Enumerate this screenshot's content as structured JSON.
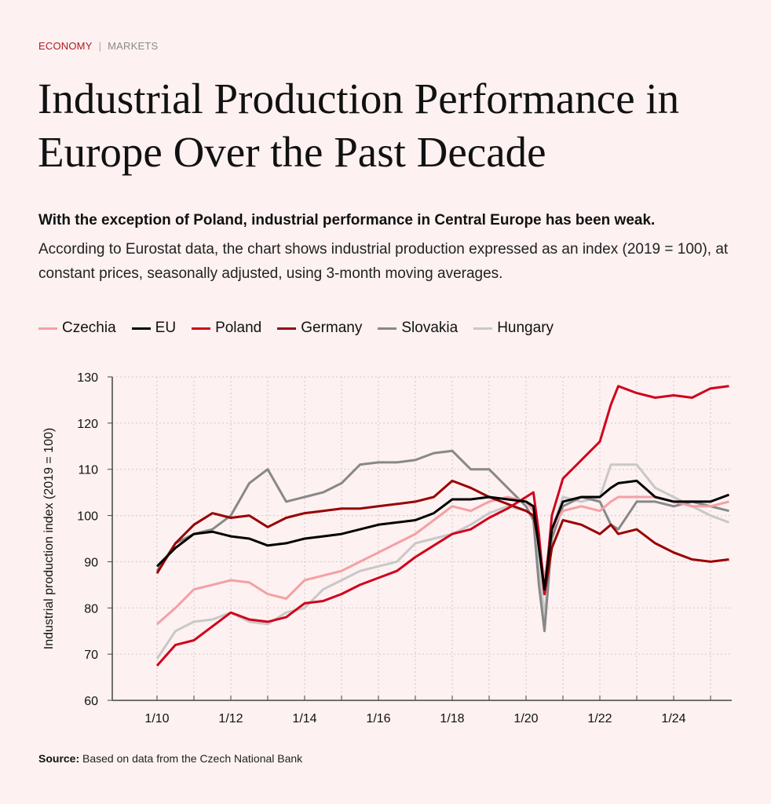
{
  "kicker": {
    "section": "ECONOMY",
    "separator": "|",
    "subsection": "MARKETS"
  },
  "title": "Industrial Production Performance in Europe Over the Past Decade",
  "lead": "With the exception of Poland, industrial performance in Central Europe has been weak.",
  "description": "According to Eurostat data, the chart shows industrial production expressed as an index (2019 = 100), at constant prices, seasonally adjusted, using 3-month moving averages.",
  "source": {
    "label": "Source:",
    "text": "Based on data from the Czech National Bank"
  },
  "chart_data": {
    "type": "line",
    "title": "",
    "xlabel": "",
    "ylabel": "Industrial production index (2019 = 100)",
    "ylim": [
      60,
      130
    ],
    "yticks": [
      60,
      70,
      80,
      90,
      100,
      110,
      120,
      130
    ],
    "xlim": [
      2008.1,
      2025.6
    ],
    "xticks": [
      2010,
      2011,
      2012,
      2013,
      2014,
      2015,
      2016,
      2017,
      2018,
      2019,
      2020,
      2021,
      2022,
      2023,
      2024,
      2025
    ],
    "xtick_labels": [
      {
        "x": 2010,
        "label": "1/10"
      },
      {
        "x": 2012,
        "label": "1/12"
      },
      {
        "x": 2014,
        "label": "1/14"
      },
      {
        "x": 2016,
        "label": "1/16"
      },
      {
        "x": 2018,
        "label": "1/18"
      },
      {
        "x": 2020,
        "label": "1/20"
      },
      {
        "x": 2022,
        "label": "1/22"
      },
      {
        "x": 2024,
        "label": "1/24"
      }
    ],
    "grid": true,
    "legend_position": "top-left",
    "x": [
      2010.0,
      2010.5,
      2011.0,
      2011.5,
      2012.0,
      2012.5,
      2013.0,
      2013.5,
      2014.0,
      2014.5,
      2015.0,
      2015.5,
      2016.0,
      2016.5,
      2017.0,
      2017.5,
      2018.0,
      2018.5,
      2019.0,
      2019.5,
      2020.0,
      2020.2,
      2020.35,
      2020.5,
      2020.7,
      2021.0,
      2021.5,
      2022.0,
      2022.3,
      2022.5,
      2023.0,
      2023.5,
      2024.0,
      2024.5,
      2025.0,
      2025.5
    ],
    "series": [
      {
        "name": "Czechia",
        "color": "#f4a0a5",
        "values": [
          76.5,
          80,
          84,
          85,
          86,
          85.5,
          83,
          82,
          86,
          87,
          88,
          90,
          92,
          94,
          96,
          99,
          102,
          101,
          103,
          104,
          103,
          101,
          94,
          86,
          97,
          101,
          102,
          101,
          103,
          104,
          104,
          104,
          103,
          102,
          102,
          103
        ]
      },
      {
        "name": "EU",
        "color": "#000000",
        "values": [
          89,
          93,
          96,
          96.5,
          95.5,
          95,
          93.5,
          94,
          95,
          95.5,
          96,
          97,
          98,
          98.5,
          99,
          100.5,
          103.5,
          103.5,
          104,
          103.5,
          103,
          102,
          93,
          84,
          97,
          103,
          104,
          104,
          106,
          107,
          107.5,
          104,
          103,
          103,
          103,
          104.5
        ]
      },
      {
        "name": "Poland",
        "color": "#d0021b",
        "values": [
          67.5,
          72,
          73,
          76,
          79,
          77.5,
          77,
          78,
          81,
          81.5,
          83,
          85,
          86.5,
          88,
          91,
          93.5,
          96,
          97,
          99.5,
          101.5,
          104,
          105,
          96,
          83,
          100,
          108,
          112,
          116,
          124,
          128,
          126.5,
          125.5,
          126,
          125.5,
          127.5,
          128
        ]
      },
      {
        "name": "Germany",
        "color": "#990000",
        "values": [
          87.5,
          94,
          98,
          100.5,
          99.5,
          100,
          97.5,
          99.5,
          100.5,
          101,
          101.5,
          101.5,
          102,
          102.5,
          103,
          104,
          107.5,
          106,
          104,
          102.5,
          101,
          100,
          94,
          83,
          93,
          99,
          98,
          96,
          98,
          96,
          97,
          94,
          92,
          90.5,
          90,
          90.5
        ]
      },
      {
        "name": "Slovakia",
        "color": "#888888",
        "values": [
          88,
          94,
          96,
          97,
          100,
          107,
          110,
          103,
          104,
          105,
          107,
          111,
          111.5,
          111.5,
          112,
          113.5,
          114,
          110,
          110,
          106,
          102,
          99,
          85,
          75,
          95,
          102,
          104,
          103,
          98,
          97,
          103,
          103,
          102,
          103,
          102,
          101
        ]
      },
      {
        "name": "Hungary",
        "color": "#c8c8c8",
        "values": [
          69,
          75,
          77,
          77.5,
          79,
          77,
          76.5,
          79,
          80,
          84,
          86,
          88,
          89,
          90,
          94,
          95,
          96,
          98,
          100.5,
          102,
          101,
          100,
          90,
          78,
          97,
          104,
          103,
          104,
          111,
          111,
          111,
          106,
          104,
          102,
          100,
          98.5
        ]
      }
    ]
  }
}
